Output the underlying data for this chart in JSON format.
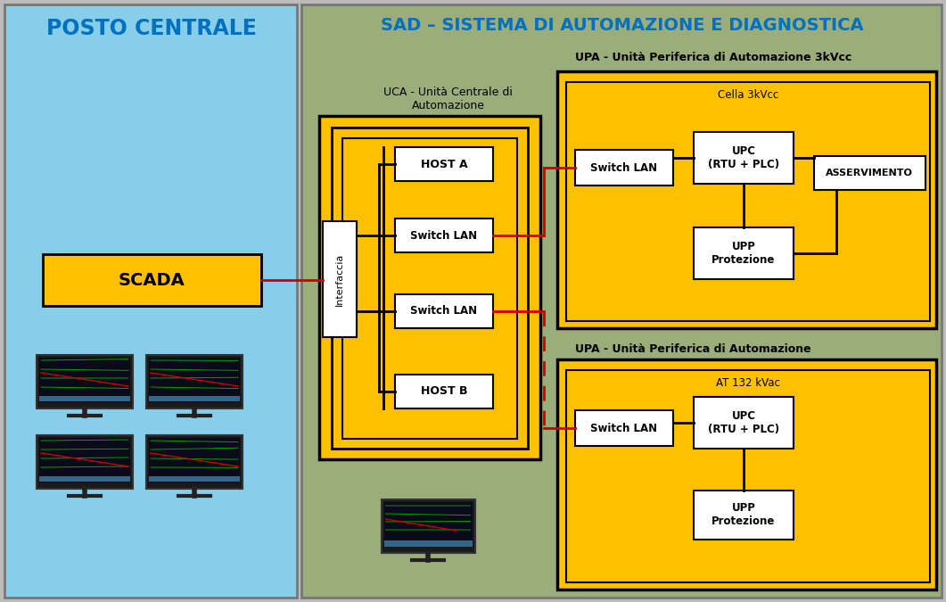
{
  "title_sad": "SAD – SISTEMA DI AUTOMAZIONE E DIAGNOSTICA",
  "title_posto": "POSTO CENTRALE",
  "bg_left": "#87CEEB",
  "bg_right": "#9BAD7A",
  "gold": "#FFC000",
  "white": "#FFFFFF",
  "black": "#000000",
  "red": "#CC0000",
  "blue_title": "#0070C0",
  "scada": "SCADA",
  "interfaccia": "Interfaccia",
  "host_a": "HOST A",
  "host_b": "HOST B",
  "switch_lan": "Switch LAN",
  "uca_label": "UCA - Unità Centrale di\nAutomazione",
  "upa1_label": "UPA - Unità Periferica di Automazione 3kVcc",
  "upa2_label": "UPA - Unità Periferica di Automazione",
  "cella_label": "Cella 3kVcc",
  "at_label": "AT 132 kVac",
  "upc": "UPC\n(RTU + PLC)",
  "upp": "UPP\nProtezione",
  "asservimento": "ASSERVIMENTO"
}
